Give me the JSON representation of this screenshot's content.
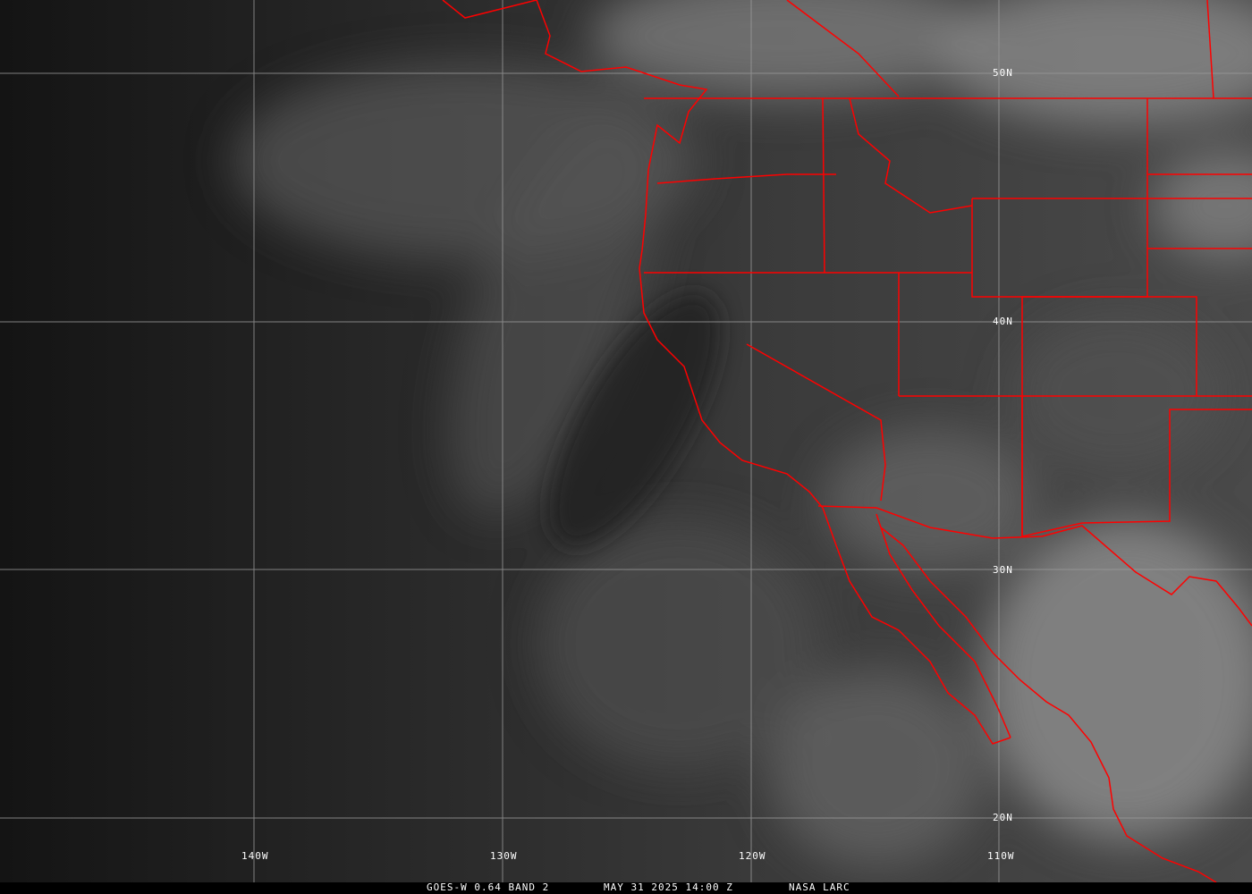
{
  "caption": {
    "satellite": "GOES-W 0.64 BAND 2",
    "datetime": "MAY 31 2025 14:00 Z",
    "source": "NASA LARC"
  },
  "grid": {
    "longitudes": [
      "140W",
      "130W",
      "120W",
      "110W"
    ],
    "latitudes": [
      "50N",
      "40N",
      "30N",
      "20N"
    ]
  },
  "colors": {
    "boundaries": "#ff0000",
    "grid": "#9a9a9a",
    "background": "#000000"
  }
}
